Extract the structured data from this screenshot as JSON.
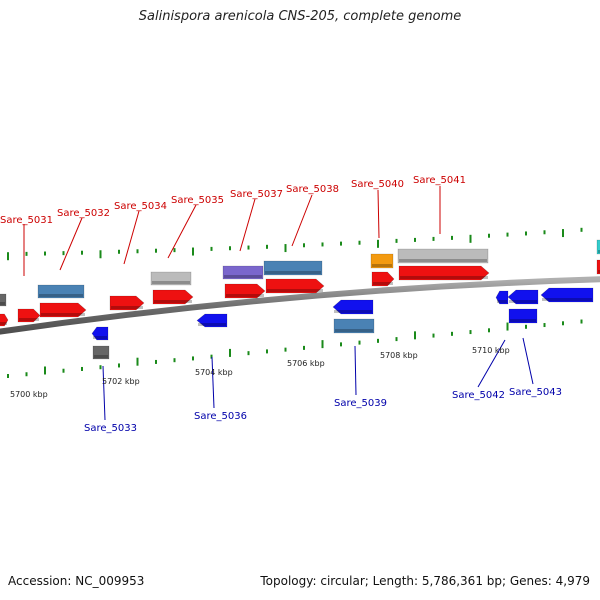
{
  "title": "Salinispora arenicola CNS-205, complete genome",
  "accession": "Accession: NC_009953",
  "summary": "Topology: circular; Length: 5,786,361 bp; Genes: 4,979",
  "colors": {
    "forward_label": "#cc0000",
    "reverse_label": "#0000aa",
    "backbone": "#7a7a7a",
    "tick": "#1a8a1a"
  },
  "scale_labels": [
    "5700 kbp",
    "5702 kbp",
    "5704 kbp",
    "5706 kbp",
    "5708 kbp",
    "5710 kbp"
  ],
  "gene_labels": {
    "forward": [
      "Sare_5031",
      "Sare_5032",
      "Sare_5034",
      "Sare_5035",
      "Sare_5037",
      "Sare_5038",
      "Sare_5040",
      "Sare_5041"
    ],
    "reverse": [
      "Sare_5033",
      "Sare_5036",
      "Sare_5039",
      "Sare_5042",
      "Sare_5043"
    ]
  },
  "feature_colors": {
    "red": "#ee1111",
    "blue": "#1111ee",
    "steel": "#4a82b4",
    "grey": "#bbbbbb",
    "dark_grey": "#666666",
    "purple": "#7a66cc",
    "orange": "#f39a10",
    "cyan": "#33cccc"
  }
}
